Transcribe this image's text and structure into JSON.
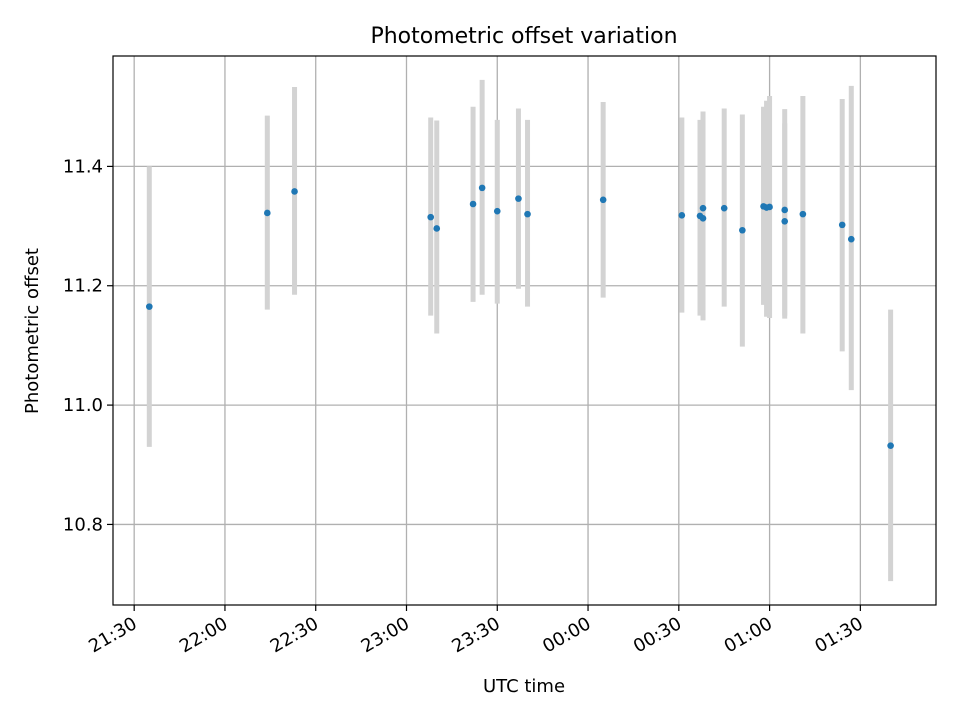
{
  "chart_data": {
    "type": "scatter",
    "title": "Photometric offset variation",
    "xlabel": "UTC time",
    "ylabel": "Photometric offset",
    "x_format": "time HH:MM",
    "xlim": [
      "21:23",
      "01:55"
    ],
    "ylim": [
      10.665,
      11.585
    ],
    "grid": true,
    "x_ticks": [
      "21:30",
      "22:00",
      "22:30",
      "23:00",
      "23:30",
      "00:00",
      "00:30",
      "01:00",
      "01:30"
    ],
    "y_ticks": [
      "10.8",
      "11.0",
      "11.2",
      "11.4"
    ],
    "marker_color": "#1f77b4",
    "errorbar_color": "#d3d3d3",
    "grid_color": "#b0b0b0",
    "points": [
      {
        "time": "21:35",
        "y": 11.165,
        "err_low": 10.93,
        "err_high": 11.4
      },
      {
        "time": "22:14",
        "y": 11.322,
        "err_low": 11.16,
        "err_high": 11.485
      },
      {
        "time": "22:23",
        "y": 11.358,
        "err_low": 11.185,
        "err_high": 11.533
      },
      {
        "time": "23:08",
        "y": 11.315,
        "err_low": 11.15,
        "err_high": 11.482
      },
      {
        "time": "23:10",
        "y": 11.296,
        "err_low": 11.12,
        "err_high": 11.477
      },
      {
        "time": "23:22",
        "y": 11.337,
        "err_low": 11.173,
        "err_high": 11.5
      },
      {
        "time": "23:25",
        "y": 11.364,
        "err_low": 11.185,
        "err_high": 11.545
      },
      {
        "time": "23:30",
        "y": 11.325,
        "err_low": 11.17,
        "err_high": 11.478
      },
      {
        "time": "23:37",
        "y": 11.346,
        "err_low": 11.195,
        "err_high": 11.497
      },
      {
        "time": "23:40",
        "y": 11.32,
        "err_low": 11.165,
        "err_high": 11.478
      },
      {
        "time": "00:05",
        "y": 11.344,
        "err_low": 11.18,
        "err_high": 11.508
      },
      {
        "time": "00:31",
        "y": 11.318,
        "err_low": 11.155,
        "err_high": 11.482
      },
      {
        "time": "00:37",
        "y": 11.317,
        "err_low": 11.15,
        "err_high": 11.478
      },
      {
        "time": "00:38",
        "y": 11.313,
        "err_low": 11.142,
        "err_high": 11.484
      },
      {
        "time": "00:38",
        "y": 11.33,
        "err_low": 11.165,
        "err_high": 11.492
      },
      {
        "time": "00:45",
        "y": 11.33,
        "err_low": 11.165,
        "err_high": 11.497
      },
      {
        "time": "00:51",
        "y": 11.293,
        "err_low": 11.098,
        "err_high": 11.487
      },
      {
        "time": "00:58",
        "y": 11.333,
        "err_low": 11.168,
        "err_high": 11.5
      },
      {
        "time": "00:59",
        "y": 11.331,
        "err_low": 11.148,
        "err_high": 11.51
      },
      {
        "time": "01:00",
        "y": 11.332,
        "err_low": 11.146,
        "err_high": 11.518
      },
      {
        "time": "01:05",
        "y": 11.327,
        "err_low": 11.15,
        "err_high": 11.496
      },
      {
        "time": "01:05",
        "y": 11.308,
        "err_low": 11.145,
        "err_high": 11.472
      },
      {
        "time": "01:11",
        "y": 11.32,
        "err_low": 11.12,
        "err_high": 11.518
      },
      {
        "time": "01:24",
        "y": 11.302,
        "err_low": 11.09,
        "err_high": 11.513
      },
      {
        "time": "01:27",
        "y": 11.278,
        "err_low": 11.025,
        "err_high": 11.535
      },
      {
        "time": "01:40",
        "y": 10.932,
        "err_low": 10.705,
        "err_high": 11.16
      }
    ]
  }
}
